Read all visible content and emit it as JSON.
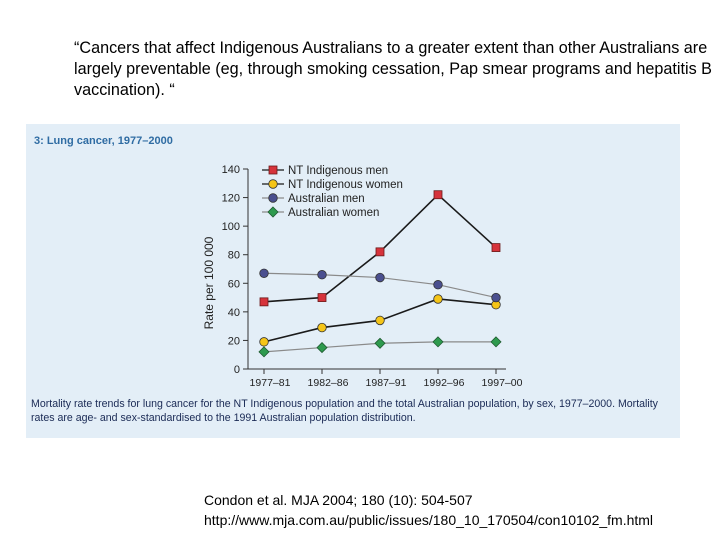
{
  "quote": "“Cancers that affect Indigenous Australians to a greater extent than other Australians are largely preventable (eg, through smoking cessation, Pap smear programs and hepatitis B vaccination). “",
  "figure": {
    "title": "3: Lung cancer, 1977–2000",
    "caption": "Mortality rate trends for lung cancer for the NT Indigenous population and the total Australian population, by sex, 1977–2000. Mortality rates are age- and sex-standardised to the 1991 Australian population distribution."
  },
  "chart_data": {
    "type": "line",
    "title": "3: Lung cancer, 1977–2000",
    "xlabel": "",
    "ylabel": "Rate per 100 000",
    "categories": [
      "1977–81",
      "1982–86",
      "1987–91",
      "1992–96",
      "1997–00"
    ],
    "ylim": [
      0,
      140
    ],
    "yticks": [
      0,
      20,
      40,
      60,
      80,
      100,
      120,
      140
    ],
    "legend_position": "top-left",
    "series": [
      {
        "name": "NT Indigenous men",
        "values": [
          47,
          50,
          82,
          122,
          85
        ],
        "marker": "square",
        "color": "#d6333b",
        "line_color": "#1a1a1a"
      },
      {
        "name": "NT Indigenous women",
        "values": [
          19,
          29,
          34,
          49,
          45
        ],
        "marker": "circle",
        "color": "#f5c518",
        "line_color": "#1a1a1a"
      },
      {
        "name": "Australian men",
        "values": [
          67,
          66,
          64,
          59,
          50
        ],
        "marker": "circle",
        "color": "#4a4f8f",
        "line_color": "#8a8a8a"
      },
      {
        "name": "Australian women",
        "values": [
          12,
          15,
          18,
          19,
          19
        ],
        "marker": "diamond",
        "color": "#2e9a4e",
        "line_color": "#8a8a8a"
      }
    ]
  },
  "citation": {
    "line1": "Condon et al. MJA 2004; 180 (10): 504-507",
    "line2": "http://www.mja.com.au/public/issues/180_10_170504/con10102_fm.html"
  }
}
